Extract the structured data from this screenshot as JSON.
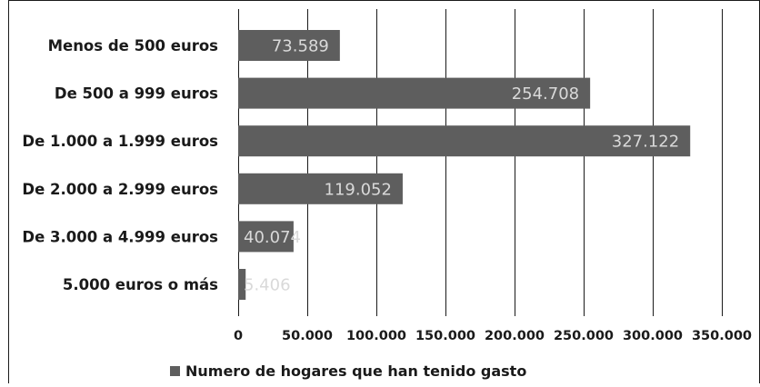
{
  "colors": {
    "bar": "#5e5e5e",
    "grid": "#1a1a1a",
    "text": "#1a1a1a",
    "data_label": "#d9d9d9",
    "background": "#ffffff"
  },
  "chart_data": {
    "type": "bar",
    "orientation": "horizontal",
    "title": "",
    "xlabel": "",
    "ylabel": "",
    "categories": [
      "Menos de 500 euros",
      "De 500 a 999 euros",
      "De 1.000 a 1.999 euros",
      "De 2.000 a 2.999 euros",
      "De 3.000 a 4.999 euros",
      "5.000 euros o más"
    ],
    "series": [
      {
        "name": "Numero de hogares que han tenido gasto",
        "values": [
          73589,
          254708,
          327122,
          119052,
          40074,
          5406
        ],
        "data_labels": [
          "73.589",
          "254.708",
          "327.122",
          "119.052",
          "40.074",
          "5.406"
        ]
      }
    ],
    "xlim": [
      0,
      350000
    ],
    "x_ticks": [
      0,
      50000,
      100000,
      150000,
      200000,
      250000,
      300000,
      350000
    ],
    "x_tick_labels": [
      "0",
      "50.000",
      "100.000",
      "150.000",
      "200.000",
      "250.000",
      "300.000",
      "350.000"
    ],
    "grid": true,
    "legend_position": "bottom"
  }
}
